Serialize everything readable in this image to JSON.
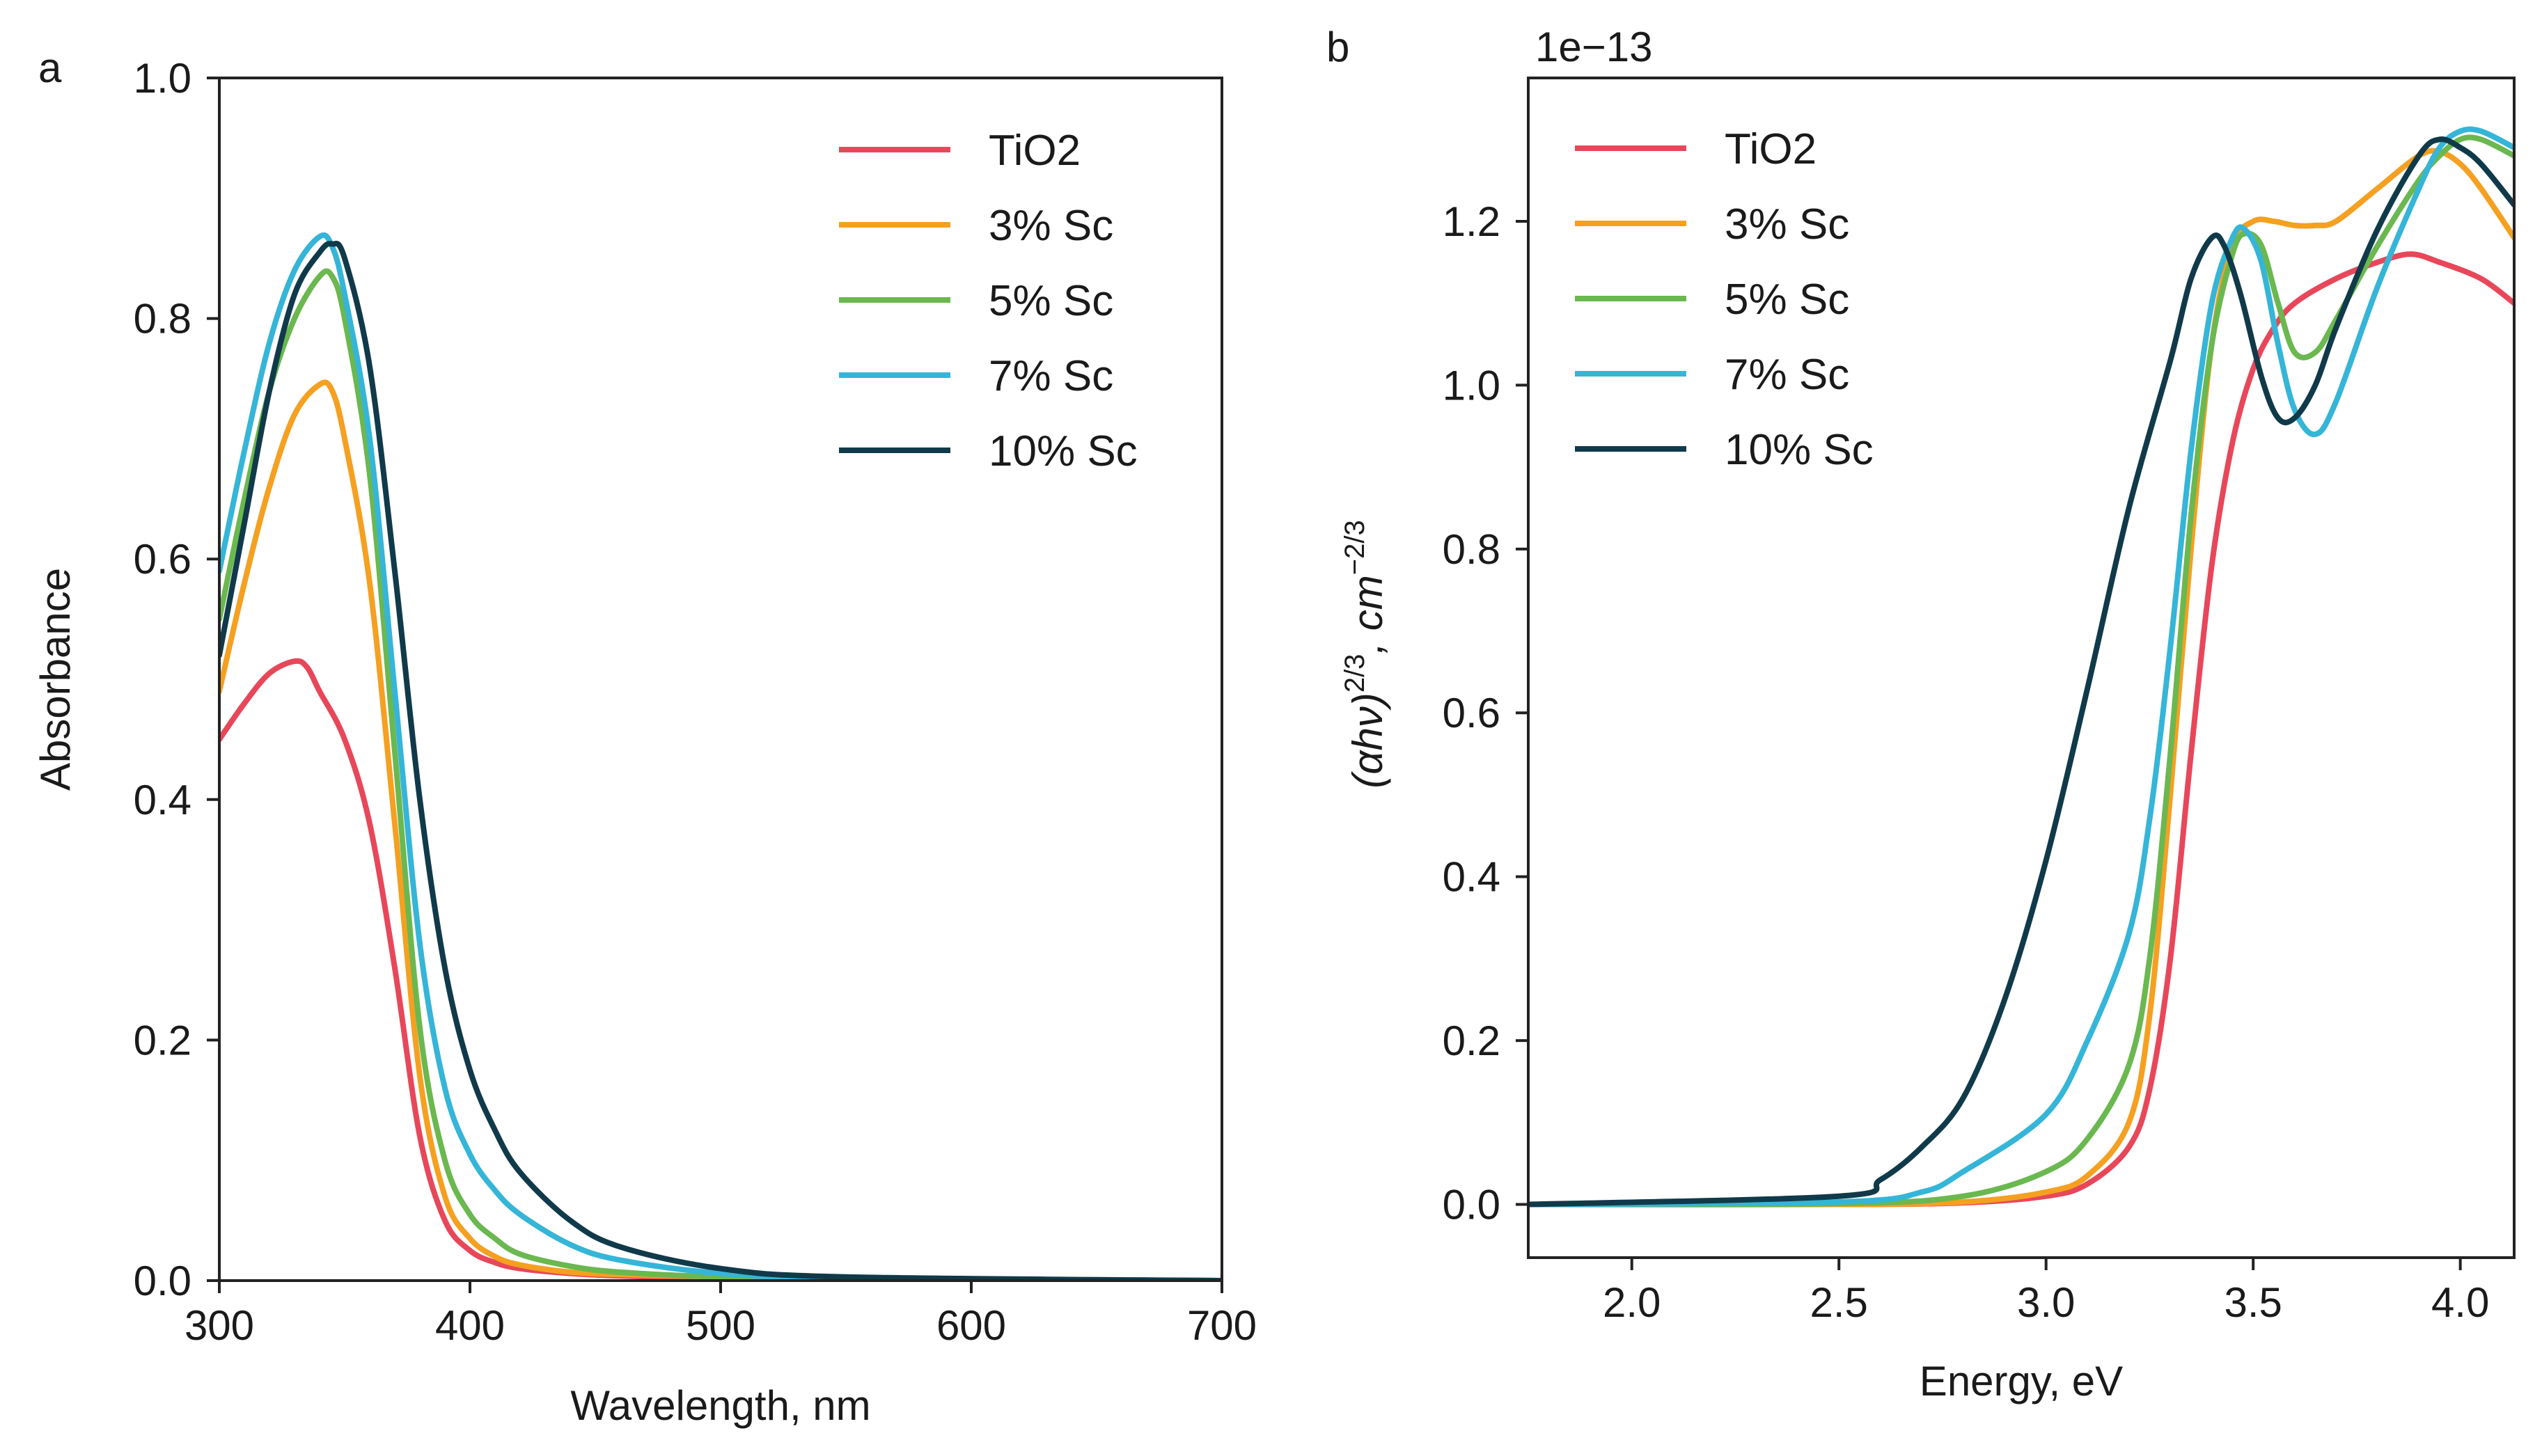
{
  "chart_data": [
    {
      "panel": "a",
      "type": "line",
      "title": "",
      "xlabel": "Wavelength, nm",
      "ylabel": "Absorbance",
      "xlim": [
        300,
        700
      ],
      "ylim": [
        0,
        1.0
      ],
      "xticks": [
        300,
        400,
        500,
        600,
        700
      ],
      "xtick_labels": [
        "300",
        "400",
        "500",
        "600",
        "700"
      ],
      "yticks": [
        0.0,
        0.2,
        0.4,
        0.6,
        0.8,
        1.0
      ],
      "ytick_labels": [
        "0.0",
        "0.2",
        "0.4",
        "0.6",
        "0.8",
        "1.0"
      ],
      "grid": false,
      "legend_position": "top-right",
      "series": [
        {
          "name": "TiO2",
          "color": "#e8475a",
          "x": [
            300,
            310,
            320,
            330,
            335,
            340,
            350,
            360,
            370,
            380,
            390,
            400,
            410,
            420,
            440,
            460,
            500,
            550,
            700
          ],
          "y": [
            0.45,
            0.48,
            0.505,
            0.515,
            0.51,
            0.49,
            0.45,
            0.38,
            0.26,
            0.12,
            0.05,
            0.025,
            0.015,
            0.01,
            0.006,
            0.004,
            0.002,
            0.001,
            0.0
          ]
        },
        {
          "name": "3% Sc",
          "color": "#f5a020",
          "x": [
            300,
            310,
            320,
            330,
            340,
            345,
            350,
            360,
            370,
            380,
            390,
            400,
            410,
            420,
            440,
            460,
            500,
            550,
            700
          ],
          "y": [
            0.49,
            0.58,
            0.66,
            0.72,
            0.745,
            0.74,
            0.7,
            0.58,
            0.38,
            0.17,
            0.07,
            0.035,
            0.02,
            0.013,
            0.007,
            0.005,
            0.003,
            0.001,
            0.0
          ]
        },
        {
          "name": "5% Sc",
          "color": "#6ab84f",
          "x": [
            300,
            310,
            320,
            330,
            340,
            345,
            350,
            360,
            370,
            380,
            390,
            400,
            410,
            420,
            440,
            460,
            500,
            550,
            700
          ],
          "y": [
            0.55,
            0.65,
            0.74,
            0.8,
            0.835,
            0.835,
            0.8,
            0.67,
            0.44,
            0.21,
            0.1,
            0.055,
            0.035,
            0.022,
            0.012,
            0.007,
            0.003,
            0.001,
            0.0
          ]
        },
        {
          "name": "7% Sc",
          "color": "#35b5d8",
          "x": [
            300,
            310,
            320,
            330,
            340,
            345,
            350,
            360,
            370,
            380,
            390,
            400,
            410,
            420,
            440,
            460,
            500,
            550,
            700
          ],
          "y": [
            0.59,
            0.69,
            0.78,
            0.84,
            0.868,
            0.86,
            0.82,
            0.7,
            0.49,
            0.28,
            0.16,
            0.105,
            0.075,
            0.055,
            0.03,
            0.017,
            0.006,
            0.002,
            0.0
          ]
        },
        {
          "name": "10% Sc",
          "color": "#103a4a",
          "x": [
            300,
            310,
            320,
            330,
            340,
            345,
            350,
            360,
            370,
            380,
            390,
            400,
            410,
            420,
            440,
            460,
            500,
            550,
            700
          ],
          "y": [
            0.52,
            0.63,
            0.74,
            0.82,
            0.855,
            0.862,
            0.85,
            0.76,
            0.59,
            0.4,
            0.26,
            0.175,
            0.125,
            0.09,
            0.05,
            0.028,
            0.01,
            0.003,
            0.0
          ]
        }
      ]
    },
    {
      "panel": "b",
      "type": "line",
      "title": "",
      "xlabel": "Energy, eV",
      "ylabel_main": "(αhν)",
      "ylabel_sup1": "2/3",
      "ylabel_mid": ", cm",
      "ylabel_sup2": "−2/3",
      "offset_label": "1e−13",
      "xlim": [
        1.75,
        4.13
      ],
      "ylim": [
        -0.065,
        1.375
      ],
      "xticks": [
        2.0,
        2.5,
        3.0,
        3.5,
        4.0
      ],
      "xtick_labels": [
        "2.0",
        "2.5",
        "3.0",
        "3.5",
        "4.0"
      ],
      "yticks": [
        0.0,
        0.2,
        0.4,
        0.6,
        0.8,
        1.0,
        1.2
      ],
      "ytick_labels": [
        "0.0",
        "0.2",
        "0.4",
        "0.6",
        "0.8",
        "1.0",
        "1.2"
      ],
      "grid": false,
      "legend_position": "top-left",
      "series": [
        {
          "name": "TiO2",
          "color": "#e8475a",
          "x": [
            1.75,
            2.5,
            2.8,
            3.0,
            3.1,
            3.2,
            3.25,
            3.3,
            3.35,
            3.4,
            3.45,
            3.5,
            3.55,
            3.6,
            3.7,
            3.8,
            3.88,
            3.95,
            4.05,
            4.13
          ],
          "y": [
            0.0,
            0.0,
            0.002,
            0.01,
            0.025,
            0.07,
            0.14,
            0.3,
            0.55,
            0.78,
            0.93,
            1.02,
            1.07,
            1.1,
            1.13,
            1.15,
            1.16,
            1.15,
            1.13,
            1.1
          ]
        },
        {
          "name": "3% Sc",
          "color": "#f5a020",
          "x": [
            1.75,
            2.5,
            2.8,
            3.0,
            3.1,
            3.2,
            3.25,
            3.3,
            3.35,
            3.4,
            3.45,
            3.5,
            3.55,
            3.6,
            3.65,
            3.7,
            3.8,
            3.9,
            3.95,
            4.0,
            4.05,
            4.13
          ],
          "y": [
            0.0,
            0.0,
            0.003,
            0.015,
            0.035,
            0.1,
            0.23,
            0.5,
            0.8,
            1.05,
            1.17,
            1.2,
            1.2,
            1.195,
            1.195,
            1.2,
            1.24,
            1.28,
            1.285,
            1.27,
            1.24,
            1.18
          ]
        },
        {
          "name": "5% Sc",
          "color": "#6ab84f",
          "x": [
            1.75,
            2.5,
            2.8,
            3.0,
            3.1,
            3.2,
            3.25,
            3.3,
            3.35,
            3.4,
            3.45,
            3.48,
            3.52,
            3.56,
            3.6,
            3.65,
            3.7,
            3.8,
            3.9,
            3.95,
            4.0,
            4.05,
            4.13
          ],
          "y": [
            0.0,
            0.001,
            0.01,
            0.04,
            0.08,
            0.17,
            0.3,
            0.55,
            0.84,
            1.05,
            1.16,
            1.185,
            1.17,
            1.1,
            1.04,
            1.04,
            1.08,
            1.17,
            1.25,
            1.28,
            1.3,
            1.3,
            1.28
          ]
        },
        {
          "name": "7% Sc",
          "color": "#35b5d8",
          "x": [
            1.75,
            2.5,
            2.7,
            2.8,
            3.0,
            3.1,
            3.2,
            3.25,
            3.3,
            3.35,
            3.4,
            3.45,
            3.48,
            3.52,
            3.56,
            3.6,
            3.65,
            3.7,
            3.8,
            3.9,
            3.95,
            4.0,
            4.05,
            4.13
          ],
          "y": [
            0.0,
            0.003,
            0.015,
            0.04,
            0.11,
            0.2,
            0.33,
            0.47,
            0.68,
            0.92,
            1.1,
            1.18,
            1.19,
            1.15,
            1.05,
            0.97,
            0.94,
            0.98,
            1.12,
            1.24,
            1.29,
            1.31,
            1.31,
            1.29
          ]
        },
        {
          "name": "10% Sc",
          "color": "#103a4a",
          "x": [
            1.75,
            2.5,
            2.6,
            2.7,
            2.8,
            2.9,
            3.0,
            3.1,
            3.2,
            3.3,
            3.35,
            3.4,
            3.43,
            3.47,
            3.52,
            3.56,
            3.6,
            3.65,
            3.7,
            3.8,
            3.9,
            3.95,
            4.0,
            4.05,
            4.13
          ],
          "y": [
            0.0,
            0.01,
            0.03,
            0.07,
            0.13,
            0.25,
            0.42,
            0.63,
            0.85,
            1.03,
            1.13,
            1.18,
            1.17,
            1.11,
            1.01,
            0.96,
            0.96,
            1.0,
            1.07,
            1.19,
            1.28,
            1.3,
            1.29,
            1.27,
            1.22
          ]
        }
      ]
    }
  ]
}
